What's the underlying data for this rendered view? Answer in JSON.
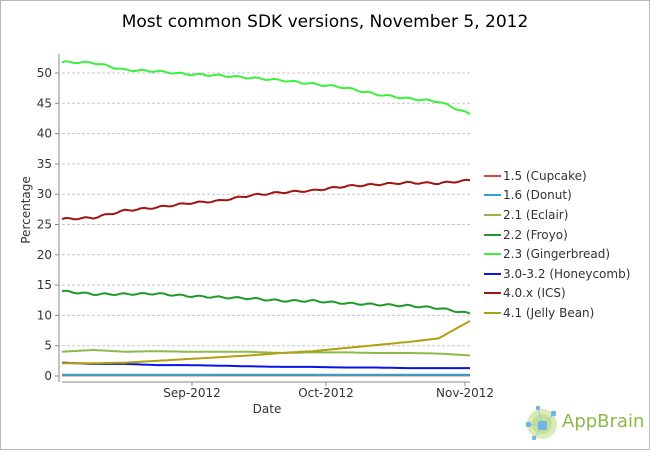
{
  "chart_data": {
    "type": "line",
    "title": "Most common SDK versions, November 5, 2012",
    "xlabel": "Date",
    "ylabel": "Percentage",
    "ylim": [
      0,
      55
    ],
    "yticks": [
      0,
      5,
      10,
      15,
      20,
      25,
      30,
      35,
      40,
      45,
      50
    ],
    "xticks": [
      "Sep-2012",
      "Oct-2012",
      "Nov-2012"
    ],
    "grid": "horizontal dashed",
    "legend_position": "right",
    "x": [
      "2012-08-05",
      "2012-08-12",
      "2012-08-19",
      "2012-08-26",
      "2012-09-02",
      "2012-09-09",
      "2012-09-16",
      "2012-09-23",
      "2012-09-30",
      "2012-10-07",
      "2012-10-14",
      "2012-10-21",
      "2012-10-28",
      "2012-11-05"
    ],
    "series": [
      {
        "name": "1.5 (Cupcake)",
        "color": "#e8452c",
        "values": [
          0.1,
          0.1,
          0.1,
          0.1,
          0.1,
          0.1,
          0.1,
          0.1,
          0.1,
          0.1,
          0.1,
          0.1,
          0.1,
          0.1
        ]
      },
      {
        "name": "1.6 (Donut)",
        "color": "#2aa5d8",
        "values": [
          0.2,
          0.2,
          0.2,
          0.2,
          0.2,
          0.2,
          0.2,
          0.2,
          0.2,
          0.2,
          0.2,
          0.2,
          0.2,
          0.2
        ]
      },
      {
        "name": "2.1 (Eclair)",
        "color": "#8db84a",
        "values": [
          4.0,
          4.3,
          4.0,
          4.1,
          4.0,
          4.0,
          4.0,
          3.8,
          3.9,
          3.9,
          3.8,
          3.8,
          3.7,
          3.4
        ]
      },
      {
        "name": "2.2 (Froyo)",
        "color": "#1f9a2a",
        "values": [
          14.0,
          13.5,
          13.5,
          13.6,
          13.2,
          13.0,
          12.8,
          12.4,
          12.4,
          12.0,
          11.8,
          11.6,
          11.2,
          10.3
        ]
      },
      {
        "name": "2.3 (Gingerbread)",
        "color": "#3cf03c",
        "values": [
          51.8,
          51.7,
          50.5,
          50.3,
          49.8,
          49.6,
          49.2,
          48.8,
          48.2,
          47.6,
          46.5,
          45.8,
          45.3,
          43.2
        ]
      },
      {
        "name": "3.0-3.2 (Honeycomb)",
        "color": "#0a14e6",
        "values": [
          2.2,
          2.0,
          2.0,
          1.8,
          1.8,
          1.7,
          1.6,
          1.5,
          1.5,
          1.4,
          1.4,
          1.3,
          1.3,
          1.3
        ]
      },
      {
        "name": "4.0.x (ICS)",
        "color": "#a01414",
        "values": [
          25.9,
          26.1,
          27.3,
          27.8,
          28.5,
          28.9,
          29.8,
          30.3,
          30.6,
          31.3,
          31.6,
          31.9,
          31.8,
          32.3
        ]
      },
      {
        "name": "4.1 (Jelly Bean)",
        "color": "#b0a010",
        "values": [
          2.1,
          2.1,
          2.2,
          2.5,
          2.8,
          3.1,
          3.4,
          3.8,
          4.1,
          4.6,
          5.1,
          5.6,
          6.2,
          9.1
        ]
      }
    ]
  },
  "legend": {
    "items": [
      {
        "label": "1.5 (Cupcake)",
        "color": "#e8452c"
      },
      {
        "label": "1.6 (Donut)",
        "color": "#2aa5d8"
      },
      {
        "label": "2.1 (Eclair)",
        "color": "#8db84a"
      },
      {
        "label": "2.2 (Froyo)",
        "color": "#1f9a2a"
      },
      {
        "label": "2.3 (Gingerbread)",
        "color": "#3cf03c"
      },
      {
        "label": "3.0-3.2 (Honeycomb)",
        "color": "#0a14e6"
      },
      {
        "label": "4.0.x (ICS)",
        "color": "#a01414"
      },
      {
        "label": "4.1 (Jelly Bean)",
        "color": "#b0a010"
      }
    ]
  },
  "watermark": {
    "text": "AppBrain"
  }
}
